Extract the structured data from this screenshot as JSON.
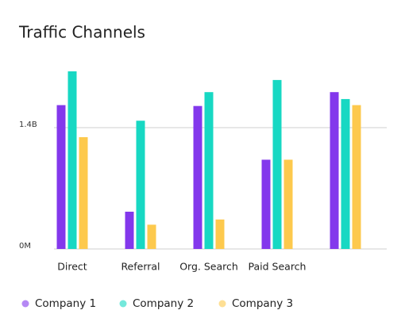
{
  "chart_data": {
    "type": "bar",
    "title": "Traffic Channels",
    "categories": [
      "Direct",
      "Referral",
      "Org. Search",
      "Paid Search",
      null
    ],
    "series": [
      {
        "name": "Company 1",
        "color": "#8338ec",
        "values": [
          1660000000,
          430000000,
          1650000000,
          1030000000,
          1810000000
        ]
      },
      {
        "name": "Company 2",
        "color": "#17d8c3",
        "values": [
          2050000000,
          1480000000,
          1810000000,
          1950000000,
          1730000000
        ]
      },
      {
        "name": "Company 3",
        "color": "#fdc94d",
        "values": [
          1290000000,
          280000000,
          340000000,
          1030000000,
          1660000000
        ]
      }
    ],
    "ylim": [
      0,
      2100000000
    ],
    "yticks": [
      {
        "value": 0,
        "label": "0M"
      },
      {
        "value": 1400000000,
        "label": "1.4B"
      }
    ],
    "grid": true,
    "legend": "bottom"
  }
}
